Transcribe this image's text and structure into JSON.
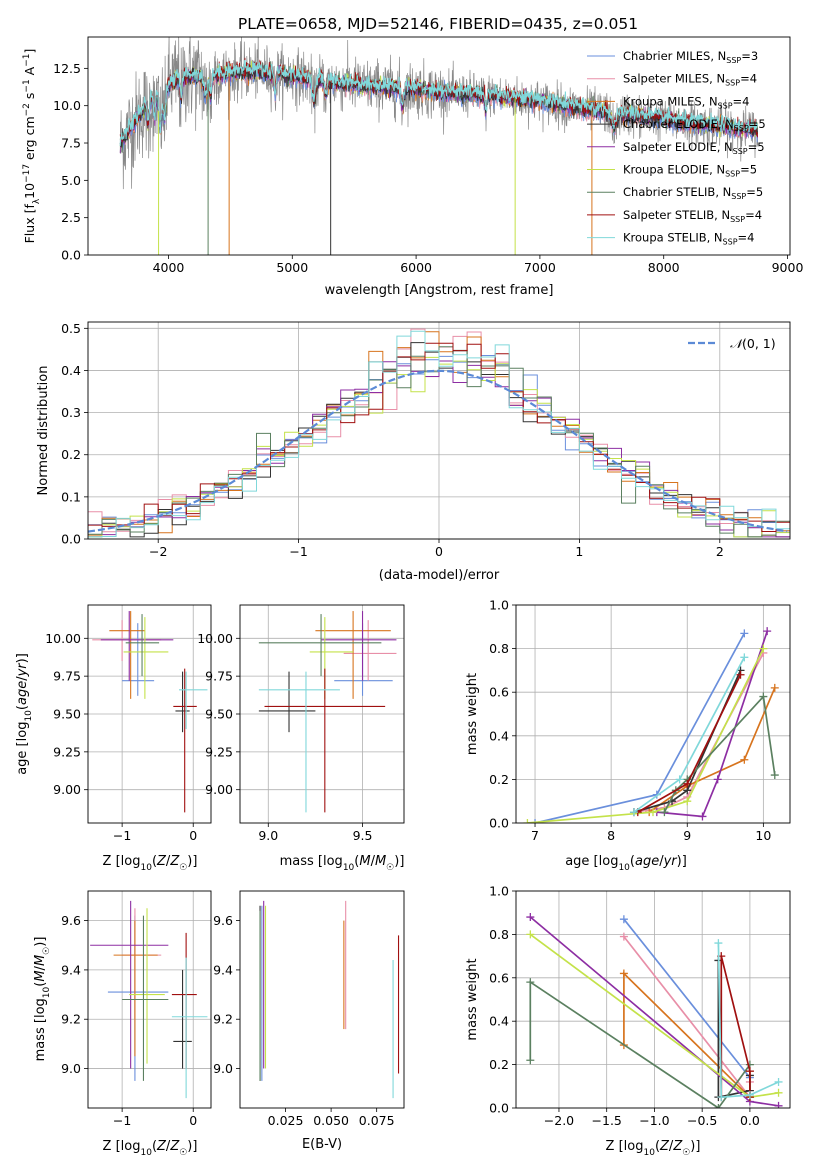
{
  "palette": [
    "#6a8fdc",
    "#e88fa8",
    "#d7741e",
    "#333333",
    "#8d2ea3",
    "#c4e24a",
    "#5b8060",
    "#a01010",
    "#80d8da"
  ],
  "chart_data": [
    {
      "id": "spectrum",
      "type": "line",
      "title": "PLATE=0658, MJD=52146, FIBERID=0435, z=0.051",
      "xlabel": "wavelength [Angstrom, rest frame]",
      "ylabel": "Flux [f$_\\lambda 10^{-17}$ erg cm$^{-2}$ s$^{-1}$ A$^{-1}$]",
      "xlim": [
        3350,
        9020
      ],
      "ylim": [
        0,
        14.6
      ],
      "xticks": [
        4000,
        5000,
        6000,
        7000,
        8000,
        9000
      ],
      "yticks": [
        0.0,
        2.5,
        5.0,
        7.5,
        10.0,
        12.5
      ],
      "grid": false,
      "legend_position": "upper right",
      "data_range": [
        3610,
        8760
      ],
      "legend": [
        {
          "pre": "Chabrier MILES, N",
          "sub": "SSP",
          "post": "=3"
        },
        {
          "pre": "Salpeter MILES, N",
          "sub": "SSP",
          "post": "=4"
        },
        {
          "pre": "Kroupa MILES, N",
          "sub": "SSP",
          "post": "=4"
        },
        {
          "pre": "Chabrier ELODIE, N",
          "sub": "SSP",
          "post": "=5"
        },
        {
          "pre": "Salpeter ELODIE, N",
          "sub": "SSP",
          "post": "=5"
        },
        {
          "pre": "Kroupa ELODIE, N",
          "sub": "SSP",
          "post": "=5"
        },
        {
          "pre": "Chabrier STELIB, N",
          "sub": "SSP",
          "post": "=5"
        },
        {
          "pre": "Salpeter STELIB, N",
          "sub": "SSP",
          "post": "=4"
        },
        {
          "pre": "Kroupa STELIB, N",
          "sub": "SSP",
          "post": "=4"
        }
      ],
      "continuum": {
        "x": [
          3620,
          3700,
          3800,
          3900,
          4000,
          4100,
          4200,
          4300,
          4500,
          4700,
          5000,
          5300,
          5600,
          6000,
          6300,
          6600,
          7000,
          7400,
          7800,
          8200,
          8500,
          8760
        ],
        "y": [
          7.5,
          8.6,
          9.8,
          10.8,
          11.4,
          11.9,
          12.0,
          11.9,
          12.2,
          12.3,
          12.0,
          11.6,
          11.3,
          11.1,
          10.8,
          10.7,
          10.3,
          9.7,
          9.3,
          8.8,
          8.6,
          8.3
        ]
      },
      "spikes": [
        {
          "x": 3920,
          "series": 5
        },
        {
          "x": 4490,
          "series": 2
        },
        {
          "x": 5310,
          "series": 3
        },
        {
          "x": 6800,
          "series": 5
        },
        {
          "x": 7420,
          "series": 2
        },
        {
          "x": 4320,
          "series": 6
        }
      ]
    },
    {
      "id": "residuals",
      "type": "histogram",
      "xlabel": "(data-model)/error",
      "ylabel": "Normed distribution",
      "xlim": [
        -2.5,
        2.5
      ],
      "ylim": [
        0,
        0.515
      ],
      "xticks": [
        -2,
        -1,
        0,
        1,
        2
      ],
      "yticks": [
        0.0,
        0.1,
        0.2,
        0.3,
        0.4,
        0.5
      ],
      "grid": true,
      "legend_position": "upper right",
      "reference_curve_label": "N(0,1)",
      "bin_width": 0.1
    },
    {
      "id": "z-age",
      "type": "errorbar",
      "xlabel": "Z [log10(Z/Z☉)]",
      "ylabel": "age [log10(age/yr)]",
      "xlim": [
        -1.48,
        0.25
      ],
      "ylim": [
        8.78,
        10.22
      ],
      "xticks": [
        -1,
        0
      ],
      "yticks": [
        9.0,
        9.25,
        9.5,
        9.75,
        10.0
      ],
      "grid": true,
      "points": [
        {
          "cx": -0.78,
          "cy": 9.72,
          "hx": [
            -1.0,
            -0.55
          ],
          "vy": [
            9.62,
            10.1
          ],
          "c": 0
        },
        {
          "cx": -1.0,
          "cy": 9.99,
          "hx": [
            -1.42,
            -0.45
          ],
          "vy": [
            9.85,
            10.12
          ],
          "c": 1
        },
        {
          "cx": -0.88,
          "cy": 10.05,
          "hx": [
            -1.18,
            -0.68
          ],
          "vy": [
            9.6,
            10.18
          ],
          "c": 2
        },
        {
          "cx": -0.15,
          "cy": 9.52,
          "hx": [
            -0.25,
            -0.05
          ],
          "vy": [
            9.38,
            9.78
          ],
          "c": 3
        },
        {
          "cx": -0.9,
          "cy": 9.99,
          "hx": [
            -1.3,
            -0.28
          ],
          "vy": [
            9.72,
            10.18
          ],
          "c": 4
        },
        {
          "cx": -0.68,
          "cy": 9.91,
          "hx": [
            -0.98,
            -0.35
          ],
          "vy": [
            9.6,
            10.14
          ],
          "c": 5
        },
        {
          "cx": -0.72,
          "cy": 9.97,
          "hx": [
            -0.95,
            -0.48
          ],
          "vy": [
            9.75,
            10.16
          ],
          "c": 6
        },
        {
          "cx": -0.12,
          "cy": 9.55,
          "hx": [
            -0.28,
            0.05
          ],
          "vy": [
            8.85,
            9.8
          ],
          "c": 7
        },
        {
          "cx": -0.1,
          "cy": 9.66,
          "hx": [
            -0.2,
            0.2
          ],
          "vy": [
            9.4,
            9.78
          ],
          "c": 8
        }
      ]
    },
    {
      "id": "mass-age",
      "type": "errorbar",
      "xlabel": "mass [log10(M/M☉)]",
      "ylabel": "",
      "xlim": [
        8.85,
        9.72
      ],
      "ylim": [
        8.78,
        10.22
      ],
      "xticks": [
        9.0,
        9.5
      ],
      "yticks": [
        9.0,
        9.25,
        9.5,
        9.75,
        10.0
      ],
      "grid": true,
      "points": [
        {
          "cx": 9.5,
          "cy": 9.72,
          "hx": [
            9.35,
            9.66
          ],
          "vy": [
            9.62,
            10.1
          ],
          "c": 0
        },
        {
          "cx": 9.53,
          "cy": 9.9,
          "hx": [
            9.4,
            9.68
          ],
          "vy": [
            9.72,
            10.12
          ],
          "c": 1
        },
        {
          "cx": 9.45,
          "cy": 10.05,
          "hx": [
            9.25,
            9.65
          ],
          "vy": [
            9.6,
            10.18
          ],
          "c": 2
        },
        {
          "cx": 9.11,
          "cy": 9.52,
          "hx": [
            8.95,
            9.25
          ],
          "vy": [
            9.38,
            9.78
          ],
          "c": 3
        },
        {
          "cx": 9.5,
          "cy": 9.99,
          "hx": [
            9.28,
            9.68
          ],
          "vy": [
            9.72,
            10.18
          ],
          "c": 4
        },
        {
          "cx": 9.3,
          "cy": 9.91,
          "hx": [
            9.22,
            9.45
          ],
          "vy": [
            9.6,
            10.14
          ],
          "c": 5
        },
        {
          "cx": 9.28,
          "cy": 9.97,
          "hx": [
            8.95,
            9.6
          ],
          "vy": [
            9.75,
            10.16
          ],
          "c": 6
        },
        {
          "cx": 9.3,
          "cy": 9.55,
          "hx": [
            8.98,
            9.62
          ],
          "vy": [
            8.85,
            9.8
          ],
          "c": 7
        },
        {
          "cx": 9.2,
          "cy": 9.66,
          "hx": [
            8.95,
            9.38
          ],
          "vy": [
            8.85,
            9.78
          ],
          "c": 8
        }
      ]
    },
    {
      "id": "age-weight",
      "type": "line",
      "xlabel": "age [log10(age/yr)]",
      "ylabel": "mass weight",
      "xlim": [
        6.75,
        10.35
      ],
      "ylim": [
        0,
        1.0
      ],
      "xticks": [
        7,
        8,
        9,
        10
      ],
      "yticks": [
        0.0,
        0.2,
        0.4,
        0.6,
        0.8,
        1.0
      ],
      "grid": true,
      "series": [
        {
          "c": 0,
          "x": [
            7.0,
            8.6,
            9.75
          ],
          "y": [
            0.0,
            0.13,
            0.87
          ]
        },
        {
          "c": 1,
          "x": [
            8.3,
            8.7,
            9.0,
            10.0
          ],
          "y": [
            0.05,
            0.07,
            0.12,
            0.78
          ]
        },
        {
          "c": 2,
          "x": [
            8.5,
            9.0,
            9.75,
            10.15
          ],
          "y": [
            0.05,
            0.17,
            0.29,
            0.62
          ]
        },
        {
          "c": 3,
          "x": [
            8.3,
            8.8,
            9.0,
            9.7
          ],
          "y": [
            0.05,
            0.1,
            0.15,
            0.7
          ]
        },
        {
          "c": 4,
          "x": [
            8.6,
            9.2,
            9.4,
            10.05
          ],
          "y": [
            0.05,
            0.03,
            0.2,
            0.88
          ]
        },
        {
          "c": 5,
          "x": [
            6.9,
            8.55,
            9.0,
            10.0
          ],
          "y": [
            0.0,
            0.05,
            0.1,
            0.8
          ]
        },
        {
          "c": 6,
          "x": [
            8.7,
            8.85,
            9.0,
            10.0,
            10.15
          ],
          "y": [
            0.05,
            0.15,
            0.2,
            0.58,
            0.22
          ]
        },
        {
          "c": 7,
          "x": [
            8.35,
            9.0,
            9.7
          ],
          "y": [
            0.05,
            0.18,
            0.68
          ]
        },
        {
          "c": 8,
          "x": [
            8.3,
            8.9,
            9.75
          ],
          "y": [
            0.05,
            0.2,
            0.76
          ]
        }
      ]
    },
    {
      "id": "z-mass",
      "type": "errorbar",
      "xlabel": "Z [log10(Z/Z☉)]",
      "ylabel": "mass [log10(M/M☉)]",
      "xlim": [
        -1.48,
        0.25
      ],
      "ylim": [
        8.84,
        9.72
      ],
      "xticks": [
        -1,
        0
      ],
      "yticks": [
        9.0,
        9.2,
        9.4,
        9.6
      ],
      "grid": true,
      "points": [
        {
          "cx": -0.82,
          "cy": 9.31,
          "hx": [
            -1.2,
            -0.35
          ],
          "vy": [
            8.95,
            9.62
          ],
          "c": 0
        },
        {
          "cx": -0.82,
          "cy": 9.46,
          "hx": [
            -1.0,
            -0.45
          ],
          "vy": [
            9.2,
            9.65
          ],
          "c": 1
        },
        {
          "cx": -0.82,
          "cy": 9.46,
          "hx": [
            -1.12,
            -0.5
          ],
          "vy": [
            9.05,
            9.6
          ],
          "c": 2
        },
        {
          "cx": -0.15,
          "cy": 9.11,
          "hx": [
            -0.28,
            -0.02
          ],
          "vy": [
            9.0,
            9.4
          ],
          "c": 3
        },
        {
          "cx": -0.88,
          "cy": 9.5,
          "hx": [
            -1.45,
            -0.35
          ],
          "vy": [
            9.0,
            9.68
          ],
          "c": 4
        },
        {
          "cx": -0.65,
          "cy": 9.3,
          "hx": [
            -0.9,
            -0.4
          ],
          "vy": [
            9.02,
            9.65
          ],
          "c": 5
        },
        {
          "cx": -0.7,
          "cy": 9.28,
          "hx": [
            -1.0,
            -0.35
          ],
          "vy": [
            8.95,
            9.62
          ],
          "c": 6
        },
        {
          "cx": -0.1,
          "cy": 9.3,
          "hx": [
            -0.3,
            0.05
          ],
          "vy": [
            9.0,
            9.55
          ],
          "c": 7
        },
        {
          "cx": -0.1,
          "cy": 9.21,
          "hx": [
            -0.3,
            0.2
          ],
          "vy": [
            8.88,
            9.45
          ],
          "c": 8
        }
      ]
    },
    {
      "id": "ebv-mass",
      "type": "errorbar",
      "xlabel": "E(B-V)",
      "ylabel": "",
      "xlim": [
        0.0,
        0.09
      ],
      "ylim": [
        8.84,
        9.72
      ],
      "xticks": [
        0.025,
        0.05,
        0.075
      ],
      "ytick_labels": [
        "9.0",
        "9.2",
        "9.4",
        "9.6"
      ],
      "yticks": [
        9.0,
        9.2,
        9.4,
        9.6
      ],
      "grid": false,
      "points": [
        {
          "cx": 0.012,
          "cy": 9.31,
          "hx": [
            0.012,
            0.012
          ],
          "vy": [
            8.95,
            9.66
          ],
          "c": 0
        },
        {
          "cx": 0.058,
          "cy": 9.46,
          "hx": [
            0.058,
            0.058
          ],
          "vy": [
            9.16,
            9.68
          ],
          "c": 1
        },
        {
          "cx": 0.057,
          "cy": 9.46,
          "hx": [
            0.057,
            0.057
          ],
          "vy": [
            9.16,
            9.6
          ],
          "c": 2
        },
        {
          "cx": 0.011,
          "cy": 9.28,
          "hx": [
            0.011,
            0.011
          ],
          "vy": [
            8.95,
            9.66
          ],
          "c": 3
        },
        {
          "cx": 0.013,
          "cy": 9.5,
          "hx": [
            0.013,
            0.013
          ],
          "vy": [
            9.0,
            9.68
          ],
          "c": 4
        },
        {
          "cx": 0.014,
          "cy": 9.3,
          "hx": [
            0.014,
            0.014
          ],
          "vy": [
            9.0,
            9.66
          ],
          "c": 5
        },
        {
          "cx": 0.011,
          "cy": 9.28,
          "hx": [
            0.011,
            0.011
          ],
          "vy": [
            8.95,
            9.64
          ],
          "c": 6
        },
        {
          "cx": 0.087,
          "cy": 9.3,
          "hx": [
            0.087,
            0.087
          ],
          "vy": [
            8.98,
            9.54
          ],
          "c": 7
        },
        {
          "cx": 0.084,
          "cy": 9.2,
          "hx": [
            0.084,
            0.084
          ],
          "vy": [
            8.88,
            9.44
          ],
          "c": 8
        }
      ]
    },
    {
      "id": "z-weight",
      "type": "line",
      "xlabel": "Z [log10(Z/Z☉)]",
      "ylabel": "mass weight",
      "xlim": [
        -2.45,
        0.42
      ],
      "ylim": [
        0,
        1.0
      ],
      "xticks": [
        -2.0,
        -1.5,
        -1.0,
        -0.5,
        0.0
      ],
      "yticks": [
        0.0,
        0.2,
        0.4,
        0.6,
        0.8,
        1.0
      ],
      "grid": true,
      "series": [
        {
          "c": 0,
          "x": [
            -1.32,
            0.0
          ],
          "y": [
            0.87,
            0.14
          ]
        },
        {
          "c": 1,
          "x": [
            -1.32,
            0.0,
            0.0
          ],
          "y": [
            0.79,
            0.05,
            0.12
          ]
        },
        {
          "c": 2,
          "x": [
            -1.32,
            -1.32,
            0.0,
            0.0
          ],
          "y": [
            0.29,
            0.62,
            0.05,
            0.17
          ]
        },
        {
          "c": 3,
          "x": [
            -0.33,
            -0.33,
            0.0,
            0.0
          ],
          "y": [
            0.68,
            0.05,
            0.08,
            0.15
          ]
        },
        {
          "c": 4,
          "x": [
            -2.3,
            0.0,
            0.3
          ],
          "y": [
            0.88,
            0.03,
            0.01
          ]
        },
        {
          "c": 5,
          "x": [
            -2.3,
            0.0,
            0.3
          ],
          "y": [
            0.8,
            0.05,
            0.07
          ]
        },
        {
          "c": 6,
          "x": [
            -2.3,
            -2.3,
            -0.33,
            0.0
          ],
          "y": [
            0.22,
            0.58,
            0.0,
            0.2
          ]
        },
        {
          "c": 7,
          "x": [
            -0.3,
            -0.3,
            0.0,
            0.0
          ],
          "y": [
            0.05,
            0.7,
            0.17,
            0.05
          ]
        },
        {
          "c": 8,
          "x": [
            -0.33,
            -0.3,
            0.0,
            0.3
          ],
          "y": [
            0.76,
            0.05,
            0.06,
            0.12
          ]
        }
      ]
    }
  ]
}
